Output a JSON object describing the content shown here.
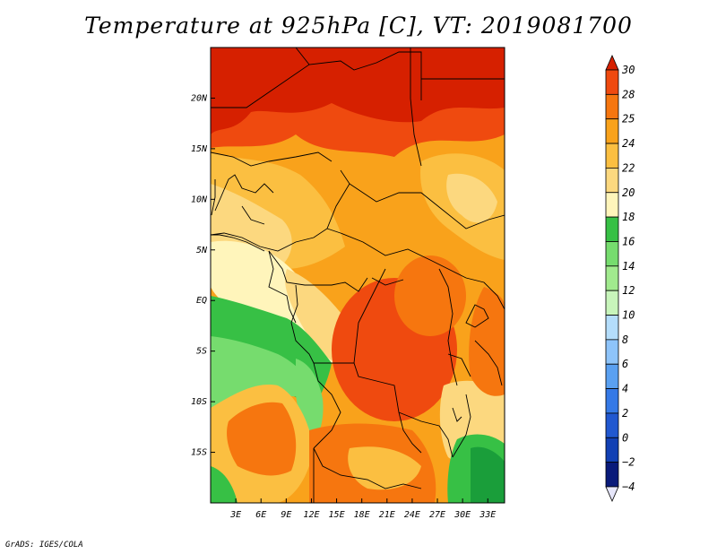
{
  "title": "Temperature at 925hPa [C], VT: 2019081700",
  "credit": "GrADS: IGES/COLA",
  "map": {
    "lon_range": [
      0,
      35
    ],
    "lat_range": [
      -20,
      25
    ],
    "lon_ticks": [
      {
        "value": 3,
        "label": "3E"
      },
      {
        "value": 6,
        "label": "6E"
      },
      {
        "value": 9,
        "label": "9E"
      },
      {
        "value": 12,
        "label": "12E"
      },
      {
        "value": 15,
        "label": "15E"
      },
      {
        "value": 18,
        "label": "18E"
      },
      {
        "value": 21,
        "label": "21E"
      },
      {
        "value": 24,
        "label": "24E"
      },
      {
        "value": 27,
        "label": "27E"
      },
      {
        "value": 30,
        "label": "30E"
      },
      {
        "value": 33,
        "label": "33E"
      }
    ],
    "lat_ticks": [
      {
        "value": 20,
        "label": "20N"
      },
      {
        "value": 15,
        "label": "15N"
      },
      {
        "value": 10,
        "label": "10N"
      },
      {
        "value": 5,
        "label": "5N"
      },
      {
        "value": 0,
        "label": "EQ"
      },
      {
        "value": -5,
        "label": "5S"
      },
      {
        "value": -10,
        "label": "10S"
      },
      {
        "value": -15,
        "label": "15S"
      }
    ]
  },
  "colorbar": {
    "levels": [
      "30",
      "28",
      "25",
      "24",
      "22",
      "20",
      "18",
      "16",
      "14",
      "12",
      "10",
      "8",
      "6",
      "4",
      "2",
      "0",
      "−2",
      "−4"
    ],
    "colors": [
      "#d62000",
      "#ef4a0f",
      "#f6760f",
      "#f9a21b",
      "#fbbf41",
      "#fcd87f",
      "#fff5bb",
      "#37c045",
      "#76dc6e",
      "#a1ea8e",
      "#c8f5bb",
      "#b4ddfb",
      "#8ec4fa",
      "#5aa0f1",
      "#3579e6",
      "#2158d0",
      "#1240b4",
      "#091a7a",
      "#e6e6fa"
    ]
  }
}
